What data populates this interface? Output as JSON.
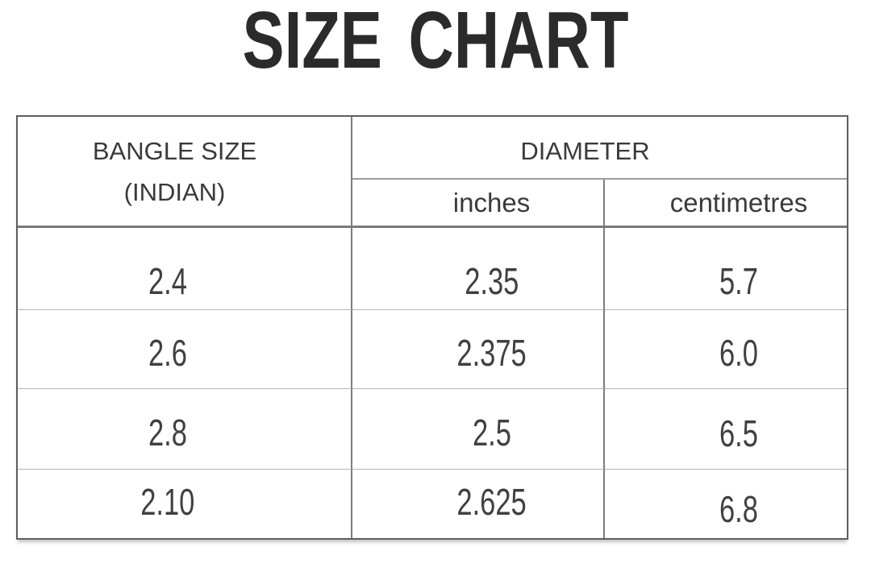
{
  "title": "SIZE CHART",
  "table": {
    "bangle_header": {
      "line1": "BANGLE SIZE",
      "line2": "(INDIAN)"
    },
    "diameter_header": "DIAMETER",
    "sub_headers": [
      "inches",
      "centimetres"
    ],
    "rows": [
      {
        "bangle_size": "2.4",
        "inches": "2.35",
        "centimetres": "5.7"
      },
      {
        "bangle_size": "2.6",
        "inches": "2.375",
        "centimetres": "6.0"
      },
      {
        "bangle_size": "2.8",
        "inches": "2.5",
        "centimetres": "6.5"
      },
      {
        "bangle_size": "2.10",
        "inches": "2.625",
        "centimetres": "6.8"
      }
    ]
  },
  "chart_data": {
    "type": "table",
    "title": "SIZE CHART",
    "columns": [
      "BANGLE SIZE (INDIAN)",
      "DIAMETER inches",
      "DIAMETER centimetres"
    ],
    "rows": [
      [
        "2.4",
        "2.35",
        "5.7"
      ],
      [
        "2.6",
        "2.375",
        "6.0"
      ],
      [
        "2.8",
        "2.5",
        "6.5"
      ],
      [
        "2.10",
        "2.625",
        "6.8"
      ]
    ]
  },
  "colors": {
    "background": "#ffffff",
    "title": "#2b2b2b",
    "text": "#3a3a3a",
    "table_border": "#5f5f5f",
    "divider": "#7d7d7d",
    "row_line": "#b5b5b5"
  }
}
